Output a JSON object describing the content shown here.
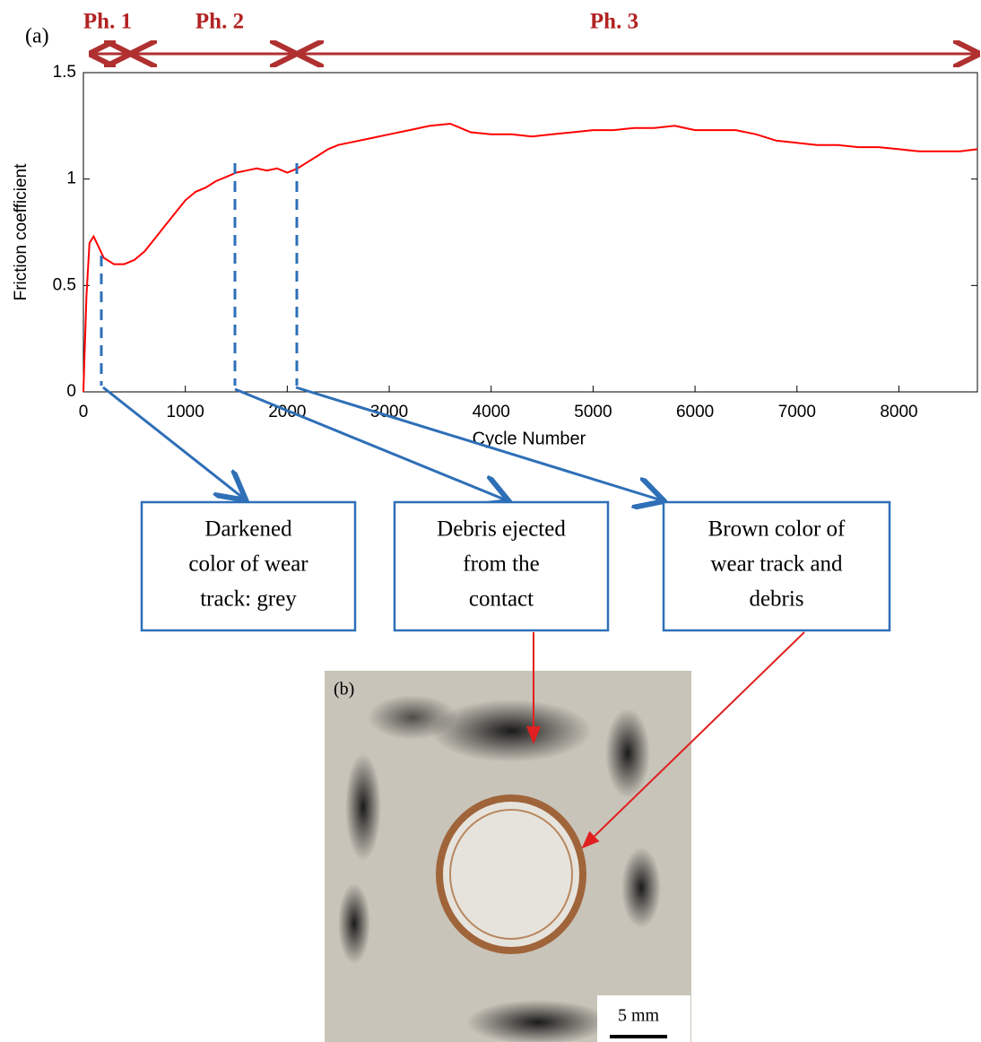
{
  "chart_data": {
    "type": "line",
    "panel_label": "(a)",
    "x_label": "Cycle Number",
    "y_label": "Friction coefficient",
    "phases": [
      "Ph. 1",
      "Ph. 2",
      "Ph. 3"
    ],
    "x": [
      0,
      30,
      60,
      100,
      150,
      200,
      300,
      400,
      500,
      600,
      700,
      800,
      900,
      1000,
      1100,
      1200,
      1300,
      1400,
      1500,
      1600,
      1700,
      1800,
      1900,
      2000,
      2100,
      2200,
      2300,
      2400,
      2500,
      2600,
      2800,
      3000,
      3200,
      3400,
      3600,
      3800,
      4000,
      4200,
      4400,
      4600,
      4800,
      5000,
      5200,
      5400,
      5600,
      5800,
      6000,
      6200,
      6400,
      6600,
      6800,
      7000,
      7200,
      7400,
      7600,
      7800,
      8000,
      8200,
      8400,
      8600,
      8770
    ],
    "values": [
      0,
      0.45,
      0.7,
      0.73,
      0.68,
      0.63,
      0.6,
      0.6,
      0.62,
      0.66,
      0.72,
      0.78,
      0.84,
      0.9,
      0.94,
      0.96,
      0.99,
      1.01,
      1.03,
      1.04,
      1.05,
      1.04,
      1.05,
      1.03,
      1.05,
      1.08,
      1.11,
      1.14,
      1.16,
      1.17,
      1.19,
      1.21,
      1.23,
      1.25,
      1.26,
      1.22,
      1.21,
      1.21,
      1.2,
      1.21,
      1.22,
      1.23,
      1.23,
      1.24,
      1.24,
      1.25,
      1.23,
      1.23,
      1.23,
      1.21,
      1.18,
      1.17,
      1.16,
      1.16,
      1.15,
      1.15,
      1.14,
      1.13,
      1.13,
      1.13,
      1.14
    ],
    "color": "#ff0000",
    "xlim": [
      0,
      8770
    ],
    "xticks": [
      0,
      1000,
      2000,
      3000,
      4000,
      5000,
      6000,
      7000,
      8000
    ],
    "ylim": [
      0,
      1.5
    ],
    "yticks": [
      0,
      0.5,
      1,
      1.5
    ],
    "annotations": [
      {
        "lines": [
          "Darkened",
          "color of wear",
          "track: grey"
        ]
      },
      {
        "lines": [
          "Debris ejected",
          "from the",
          "contact"
        ]
      },
      {
        "lines": [
          "Brown color of",
          "wear track and",
          "debris"
        ]
      }
    ],
    "photo_label": "(b)",
    "scale_bar": "5 mm"
  }
}
